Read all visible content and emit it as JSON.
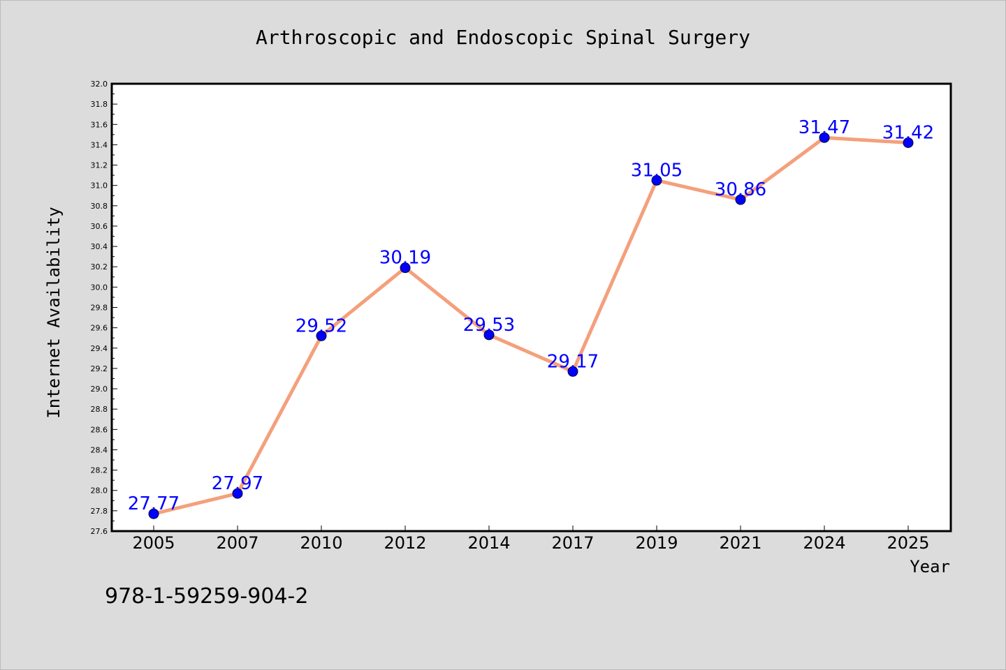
{
  "chart_data": {
    "type": "line",
    "title": "Arthroscopic and Endoscopic Spinal Surgery",
    "xlabel": "Year",
    "ylabel": "Internet Availability",
    "categories": [
      "2005",
      "2007",
      "2010",
      "2012",
      "2014",
      "2017",
      "2019",
      "2021",
      "2024",
      "2025"
    ],
    "series": [
      {
        "values": [
          27.77,
          27.97,
          29.52,
          30.19,
          29.53,
          29.17,
          31.05,
          30.86,
          31.47,
          31.42
        ],
        "labels": [
          "27.77",
          "27.97",
          "29.52",
          "30.19",
          "29.53",
          "29.17",
          "31.05",
          "30.86",
          "31.47",
          "31.42"
        ]
      }
    ],
    "ylim": [
      27.6,
      32.0
    ],
    "yticks": [
      "27.6",
      "27.8",
      "28.0",
      "28.2",
      "28.4",
      "28.6",
      "28.8",
      "29.0",
      "29.2",
      "29.4",
      "29.6",
      "29.8",
      "30.0",
      "30.2",
      "30.4",
      "30.6",
      "30.8",
      "31.0",
      "31.2",
      "31.4",
      "31.6",
      "31.8",
      "32.0"
    ],
    "grid": false,
    "colors": {
      "line": "#f4a07c",
      "marker": "#0000ff",
      "label": "#0000ff",
      "background": "#dcdcdc",
      "plot_background": "#ffffff"
    }
  },
  "annotation": {
    "isbn": "978-1-59259-904-2"
  }
}
